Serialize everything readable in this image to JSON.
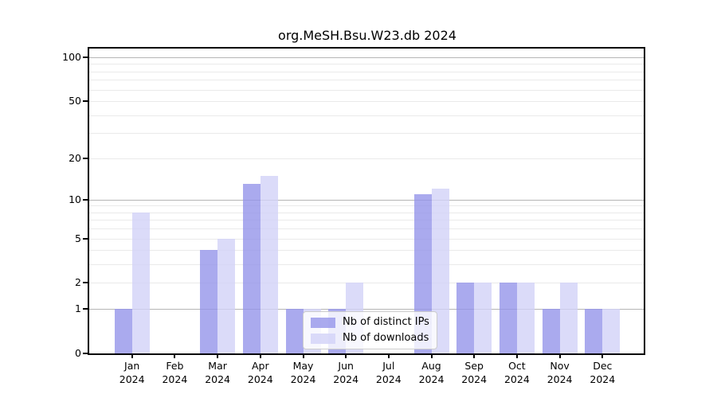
{
  "chart_data": {
    "type": "bar",
    "title": "org.MeSH.Bsu.W23.db 2024",
    "categories": [
      "Jan",
      "Feb",
      "Mar",
      "Apr",
      "May",
      "Jun",
      "Jul",
      "Aug",
      "Sep",
      "Oct",
      "Nov",
      "Dec"
    ],
    "year_label": "2024",
    "series": [
      {
        "name": "Nb of distinct IPs",
        "color": "#9595ea",
        "values": [
          1,
          0,
          4,
          13,
          1,
          1,
          0,
          11,
          2,
          2,
          1,
          1
        ]
      },
      {
        "name": "Nb of downloads",
        "color": "#d2d2f7",
        "values": [
          8,
          0,
          5,
          15,
          1,
          2,
          0,
          12,
          2,
          2,
          2,
          1
        ]
      }
    ],
    "y_axis": {
      "scale": "log10(1+x)",
      "ticks": [
        0,
        1,
        2,
        5,
        10,
        20,
        50,
        100
      ],
      "major_gridlines": [
        1,
        10,
        100
      ],
      "minor_gridlines": [
        2,
        3,
        4,
        5,
        6,
        7,
        8,
        9,
        20,
        30,
        40,
        50,
        60,
        70,
        80,
        90
      ],
      "ymin": 0,
      "ymax": 115
    },
    "grid": true,
    "legend_position": "bottom-center"
  }
}
